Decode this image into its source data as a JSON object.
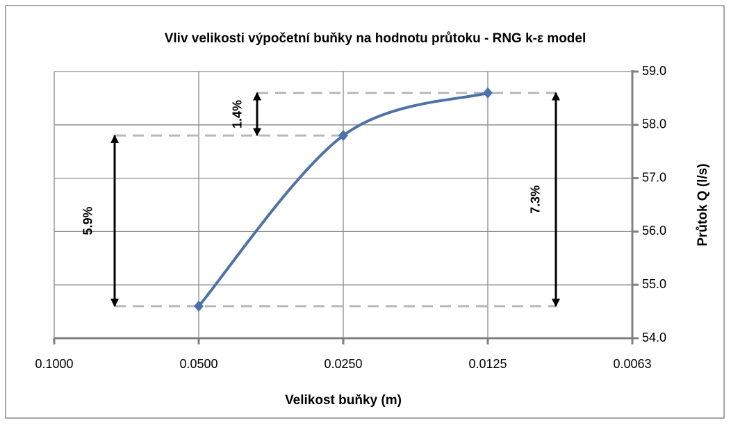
{
  "chart_data": {
    "type": "line",
    "title": "Vliv velikosti výpočetní buňky na hodnotu průtoku - RNG k-ε model",
    "x_label": "Velikost buňky (m)",
    "y_label": "Průtok Q (l/s)",
    "x": [
      0.05,
      0.025,
      0.0125
    ],
    "series": [
      {
        "name": "Q",
        "color": "#4a72b0",
        "values": [
          54.6,
          57.8,
          58.6
        ]
      }
    ],
    "xlim": [
      0.1,
      0.00625
    ],
    "xticks": [
      {
        "value": 0.1,
        "label": "0.1000"
      },
      {
        "value": 0.05,
        "label": "0.0500"
      },
      {
        "value": 0.025,
        "label": "0.0250"
      },
      {
        "value": 0.0125,
        "label": "0.0125"
      },
      {
        "value": 0.00625,
        "label": "0.0063"
      }
    ],
    "xscale": "log",
    "ylim": [
      54,
      59
    ],
    "yticks": [
      {
        "value": 54,
        "label": "54.0"
      },
      {
        "value": 55,
        "label": "55.0"
      },
      {
        "value": 56,
        "label": "56.0"
      },
      {
        "value": 57,
        "label": "57.0"
      },
      {
        "value": 58,
        "label": "58.0"
      },
      {
        "value": 59,
        "label": "59.0"
      }
    ],
    "y_axis_side": "right",
    "grid": true,
    "annotations": [
      "5.9%",
      "1.4%",
      "7.3%"
    ]
  }
}
